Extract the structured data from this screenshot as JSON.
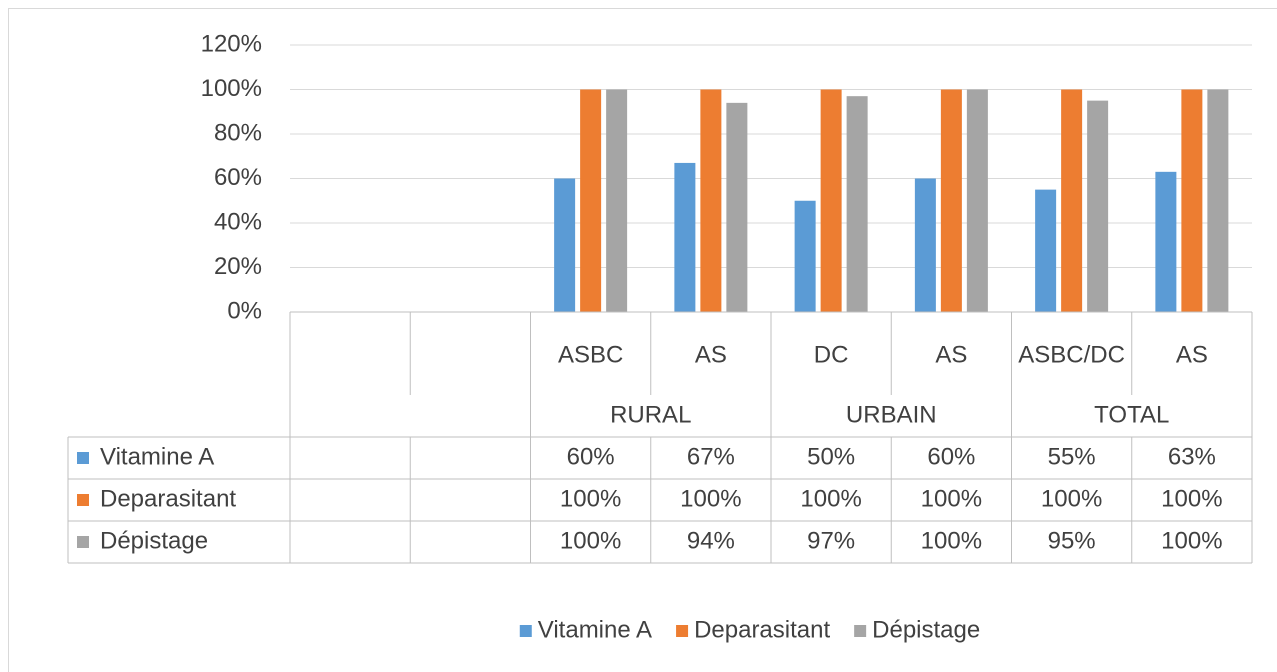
{
  "chart_data": {
    "type": "bar",
    "categories": [
      null,
      null,
      "ASBC",
      "AS",
      "DC",
      "AS",
      "ASBC/DC",
      "AS"
    ],
    "groups": [
      "RURAL",
      "URBAIN",
      "TOTAL"
    ],
    "series": [
      {
        "name": "Vitamine A",
        "color": "#5B9BD5",
        "values": [
          null,
          null,
          60,
          67,
          50,
          60,
          55,
          63
        ],
        "value_labels": [
          null,
          null,
          "60%",
          "67%",
          "50%",
          "60%",
          "55%",
          "63%"
        ]
      },
      {
        "name": "Deparasitant",
        "color": "#ED7D31",
        "values": [
          null,
          null,
          100,
          100,
          100,
          100,
          100,
          100
        ],
        "value_labels": [
          null,
          null,
          "100%",
          "100%",
          "100%",
          "100%",
          "100%",
          "100%"
        ]
      },
      {
        "name": "Dépistage",
        "color": "#A5A5A5",
        "values": [
          null,
          null,
          100,
          94,
          97,
          100,
          95,
          100
        ],
        "value_labels": [
          null,
          null,
          "100%",
          "94%",
          "97%",
          "100%",
          "95%",
          "100%"
        ]
      }
    ],
    "ylim": [
      0,
      120
    ],
    "yticks": [
      {
        "value": 0,
        "label": "0%"
      },
      {
        "value": 20,
        "label": "20%"
      },
      {
        "value": 40,
        "label": "40%"
      },
      {
        "value": 60,
        "label": "60%"
      },
      {
        "value": 80,
        "label": "80%"
      },
      {
        "value": 100,
        "label": "100%"
      },
      {
        "value": 120,
        "label": "120%"
      }
    ],
    "grid": true,
    "legend": "bottom"
  }
}
